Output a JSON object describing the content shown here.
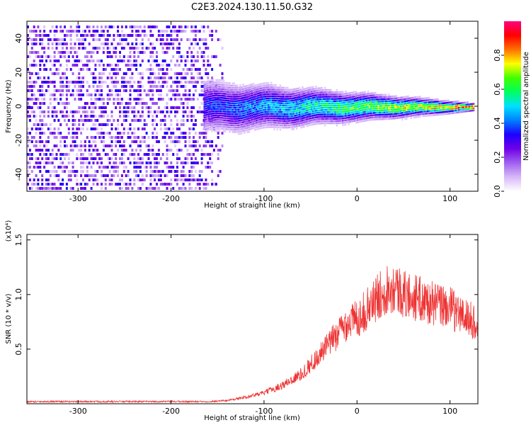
{
  "title": "C2E3.2024.130.11.50.G32",
  "colors": {
    "background": "#ffffff",
    "snr_line": "#ee3333",
    "colorbar": [
      "#ffffff",
      "#d8b8f8",
      "#a060f0",
      "#7000e8",
      "#1c00ff",
      "#0080ff",
      "#00e0ff",
      "#00ff60",
      "#40ff00",
      "#ffff00",
      "#ff7000",
      "#ff0000",
      "#ff0080"
    ]
  },
  "chart_data": [
    {
      "type": "heatmap",
      "xlabel": "Height of straight line (km)",
      "ylabel": "Frequency (Hz)",
      "xlim": [
        -355,
        130
      ],
      "ylim": [
        -50,
        50
      ],
      "xticks": [
        -300,
        -200,
        -100,
        0,
        100
      ],
      "yticks": [
        -40,
        -20,
        0,
        20,
        40
      ],
      "colorbar": {
        "label": "Normalized spectral amplitude",
        "range": [
          0.0,
          1.0
        ],
        "ticks": [
          "0.0",
          "0.2",
          "0.4",
          "0.6",
          "0.8"
        ]
      },
      "regions": [
        {
          "x_range": [
            -355,
            -145
          ],
          "frequency_span": [
            -50,
            50
          ],
          "amplitude": [
            0.05,
            0.35
          ],
          "description": "broadband noise"
        },
        {
          "x_range": [
            -165,
            125
          ],
          "center_frequency": 0,
          "half_width_start": 14,
          "half_width_end": 2,
          "peak_amplitude_start": 0.35,
          "peak_amplitude_end": 0.9
        }
      ]
    },
    {
      "type": "line",
      "xlabel": "Height of straight line (km)",
      "ylabel": "SNR (10 * v/v)",
      "y_multiplier": "(x10⁴)",
      "xlim": [
        -355,
        130
      ],
      "ylim": [
        0,
        1.55
      ],
      "xticks": [
        -300,
        -200,
        -100,
        0,
        100
      ],
      "yticks": [
        "0.5",
        "1.0",
        "1.5"
      ],
      "series": [
        {
          "x": [
            -355,
            -300,
            -250,
            -200,
            -160,
            -140,
            -120,
            -100,
            -80,
            -60,
            -40,
            -20,
            -10,
            0,
            10,
            20,
            30,
            40,
            50,
            60,
            70,
            80,
            90,
            100,
            110,
            120,
            130
          ],
          "y": [
            0.02,
            0.02,
            0.02,
            0.02,
            0.02,
            0.03,
            0.06,
            0.1,
            0.17,
            0.27,
            0.45,
            0.65,
            0.75,
            0.78,
            0.86,
            0.95,
            1.05,
            1.08,
            1.0,
            0.98,
            0.95,
            0.92,
            0.9,
            0.88,
            0.82,
            0.78,
            0.72
          ]
        }
      ]
    }
  ]
}
